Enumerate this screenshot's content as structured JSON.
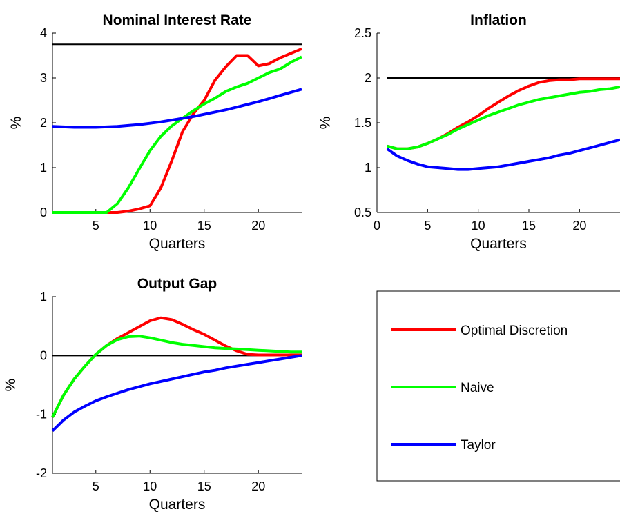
{
  "chart_data": [
    {
      "type": "line",
      "title": "Nominal Interest Rate",
      "xlabel": "Quarters",
      "ylabel": "%",
      "xlim": [
        1,
        24
      ],
      "ylim": [
        0,
        4
      ],
      "xticks": [
        "5",
        "10",
        "15",
        "20"
      ],
      "yticks": [
        "0",
        "1",
        "2",
        "3",
        "4"
      ],
      "reference_line": 3.75,
      "series": [
        {
          "name": "Optimal Discretion",
          "color": "#ff0000",
          "points": [
            [
              1,
              0
            ],
            [
              2,
              0
            ],
            [
              3,
              0
            ],
            [
              4,
              0
            ],
            [
              5,
              0
            ],
            [
              6,
              0
            ],
            [
              7,
              0
            ],
            [
              8,
              0.03
            ],
            [
              9,
              0.08
            ],
            [
              10,
              0.15
            ],
            [
              11,
              0.55
            ],
            [
              12,
              1.15
            ],
            [
              13,
              1.8
            ],
            [
              14,
              2.2
            ],
            [
              15,
              2.5
            ],
            [
              16,
              2.95
            ],
            [
              17,
              3.25
            ],
            [
              18,
              3.5
            ],
            [
              19,
              3.5
            ],
            [
              20,
              3.27
            ],
            [
              21,
              3.32
            ],
            [
              22,
              3.45
            ],
            [
              23,
              3.55
            ],
            [
              24,
              3.65
            ]
          ]
        },
        {
          "name": "Naive",
          "color": "#00ff00",
          "points": [
            [
              1,
              0
            ],
            [
              2,
              0
            ],
            [
              3,
              0
            ],
            [
              4,
              0
            ],
            [
              5,
              0
            ],
            [
              6,
              0
            ],
            [
              7,
              0.2
            ],
            [
              8,
              0.55
            ],
            [
              9,
              0.97
            ],
            [
              10,
              1.38
            ],
            [
              11,
              1.7
            ],
            [
              12,
              1.93
            ],
            [
              13,
              2.1
            ],
            [
              14,
              2.27
            ],
            [
              15,
              2.42
            ],
            [
              16,
              2.55
            ],
            [
              17,
              2.7
            ],
            [
              18,
              2.8
            ],
            [
              19,
              2.88
            ],
            [
              20,
              3.0
            ],
            [
              21,
              3.12
            ],
            [
              22,
              3.2
            ],
            [
              23,
              3.35
            ],
            [
              24,
              3.47
            ]
          ]
        },
        {
          "name": "Taylor",
          "color": "#0000ff",
          "points": [
            [
              1,
              1.92
            ],
            [
              2,
              1.91
            ],
            [
              3,
              1.9
            ],
            [
              4,
              1.9
            ],
            [
              5,
              1.9
            ],
            [
              6,
              1.91
            ],
            [
              7,
              1.92
            ],
            [
              8,
              1.94
            ],
            [
              9,
              1.96
            ],
            [
              10,
              1.99
            ],
            [
              11,
              2.02
            ],
            [
              12,
              2.06
            ],
            [
              13,
              2.1
            ],
            [
              14,
              2.14
            ],
            [
              15,
              2.19
            ],
            [
              16,
              2.24
            ],
            [
              17,
              2.29
            ],
            [
              18,
              2.35
            ],
            [
              19,
              2.41
            ],
            [
              20,
              2.47
            ],
            [
              21,
              2.54
            ],
            [
              22,
              2.61
            ],
            [
              23,
              2.68
            ],
            [
              24,
              2.75
            ]
          ]
        }
      ]
    },
    {
      "type": "line",
      "title": "Inflation",
      "xlabel": "Quarters",
      "ylabel": "%",
      "xlim": [
        0,
        24
      ],
      "ylim": [
        0.5,
        2.5
      ],
      "xticks": [
        "0",
        "5",
        "10",
        "15",
        "20"
      ],
      "yticks": [
        "0.5",
        "1",
        "1.5",
        "2",
        "2.5"
      ],
      "reference_line": 2,
      "series": [
        {
          "name": "Optimal Discretion",
          "color": "#ff0000",
          "points": [
            [
              1,
              1.24
            ],
            [
              2,
              1.21
            ],
            [
              3,
              1.21
            ],
            [
              4,
              1.23
            ],
            [
              5,
              1.27
            ],
            [
              6,
              1.32
            ],
            [
              7,
              1.38
            ],
            [
              8,
              1.45
            ],
            [
              9,
              1.51
            ],
            [
              10,
              1.58
            ],
            [
              11,
              1.66
            ],
            [
              12,
              1.73
            ],
            [
              13,
              1.8
            ],
            [
              14,
              1.86
            ],
            [
              15,
              1.91
            ],
            [
              16,
              1.95
            ],
            [
              17,
              1.97
            ],
            [
              18,
              1.98
            ],
            [
              19,
              1.98
            ],
            [
              20,
              1.99
            ],
            [
              21,
              1.99
            ],
            [
              22,
              1.99
            ],
            [
              23,
              1.99
            ],
            [
              24,
              1.99
            ]
          ]
        },
        {
          "name": "Naive",
          "color": "#00ff00",
          "points": [
            [
              1,
              1.24
            ],
            [
              2,
              1.21
            ],
            [
              3,
              1.21
            ],
            [
              4,
              1.23
            ],
            [
              5,
              1.27
            ],
            [
              6,
              1.32
            ],
            [
              7,
              1.37
            ],
            [
              8,
              1.43
            ],
            [
              9,
              1.48
            ],
            [
              10,
              1.53
            ],
            [
              11,
              1.58
            ],
            [
              12,
              1.62
            ],
            [
              13,
              1.66
            ],
            [
              14,
              1.7
            ],
            [
              15,
              1.73
            ],
            [
              16,
              1.76
            ],
            [
              17,
              1.78
            ],
            [
              18,
              1.8
            ],
            [
              19,
              1.82
            ],
            [
              20,
              1.84
            ],
            [
              21,
              1.85
            ],
            [
              22,
              1.87
            ],
            [
              23,
              1.88
            ],
            [
              24,
              1.9
            ]
          ]
        },
        {
          "name": "Taylor",
          "color": "#0000ff",
          "points": [
            [
              1,
              1.21
            ],
            [
              2,
              1.13
            ],
            [
              3,
              1.08
            ],
            [
              4,
              1.04
            ],
            [
              5,
              1.01
            ],
            [
              6,
              1.0
            ],
            [
              7,
              0.99
            ],
            [
              8,
              0.98
            ],
            [
              9,
              0.98
            ],
            [
              10,
              0.99
            ],
            [
              11,
              1.0
            ],
            [
              12,
              1.01
            ],
            [
              13,
              1.03
            ],
            [
              14,
              1.05
            ],
            [
              15,
              1.07
            ],
            [
              16,
              1.09
            ],
            [
              17,
              1.11
            ],
            [
              18,
              1.14
            ],
            [
              19,
              1.16
            ],
            [
              20,
              1.19
            ],
            [
              21,
              1.22
            ],
            [
              22,
              1.25
            ],
            [
              23,
              1.28
            ],
            [
              24,
              1.31
            ]
          ]
        }
      ]
    },
    {
      "type": "line",
      "title": "Output Gap",
      "xlabel": "Quarters",
      "ylabel": "%",
      "xlim": [
        1,
        24
      ],
      "ylim": [
        -2,
        1
      ],
      "xticks": [
        "5",
        "10",
        "15",
        "20"
      ],
      "yticks": [
        "-2",
        "-1",
        "0",
        "1"
      ],
      "reference_line": 0,
      "series": [
        {
          "name": "Optimal Discretion",
          "color": "#ff0000",
          "points": [
            [
              1,
              -1.05
            ],
            [
              2,
              -0.68
            ],
            [
              3,
              -0.4
            ],
            [
              4,
              -0.18
            ],
            [
              5,
              0.02
            ],
            [
              6,
              0.17
            ],
            [
              7,
              0.29
            ],
            [
              8,
              0.39
            ],
            [
              9,
              0.49
            ],
            [
              10,
              0.59
            ],
            [
              11,
              0.64
            ],
            [
              12,
              0.61
            ],
            [
              13,
              0.53
            ],
            [
              14,
              0.44
            ],
            [
              15,
              0.36
            ],
            [
              16,
              0.26
            ],
            [
              17,
              0.16
            ],
            [
              18,
              0.08
            ],
            [
              19,
              0.02
            ],
            [
              20,
              0.01
            ],
            [
              21,
              0.01
            ],
            [
              22,
              0.01
            ],
            [
              23,
              0.01
            ],
            [
              24,
              0.01
            ]
          ]
        },
        {
          "name": "Naive",
          "color": "#00ff00",
          "points": [
            [
              1,
              -1.05
            ],
            [
              2,
              -0.68
            ],
            [
              3,
              -0.4
            ],
            [
              4,
              -0.18
            ],
            [
              5,
              0.02
            ],
            [
              6,
              0.17
            ],
            [
              7,
              0.27
            ],
            [
              8,
              0.32
            ],
            [
              9,
              0.33
            ],
            [
              10,
              0.3
            ],
            [
              11,
              0.26
            ],
            [
              12,
              0.22
            ],
            [
              13,
              0.19
            ],
            [
              14,
              0.17
            ],
            [
              15,
              0.15
            ],
            [
              16,
              0.13
            ],
            [
              17,
              0.12
            ],
            [
              18,
              0.11
            ],
            [
              19,
              0.1
            ],
            [
              20,
              0.09
            ],
            [
              21,
              0.08
            ],
            [
              22,
              0.07
            ],
            [
              23,
              0.06
            ],
            [
              24,
              0.06
            ]
          ]
        },
        {
          "name": "Taylor",
          "color": "#0000ff",
          "points": [
            [
              1,
              -1.28
            ],
            [
              2,
              -1.1
            ],
            [
              3,
              -0.96
            ],
            [
              4,
              -0.86
            ],
            [
              5,
              -0.77
            ],
            [
              6,
              -0.7
            ],
            [
              7,
              -0.64
            ],
            [
              8,
              -0.58
            ],
            [
              9,
              -0.53
            ],
            [
              10,
              -0.48
            ],
            [
              11,
              -0.44
            ],
            [
              12,
              -0.4
            ],
            [
              13,
              -0.36
            ],
            [
              14,
              -0.32
            ],
            [
              15,
              -0.28
            ],
            [
              16,
              -0.25
            ],
            [
              17,
              -0.21
            ],
            [
              18,
              -0.18
            ],
            [
              19,
              -0.15
            ],
            [
              20,
              -0.12
            ],
            [
              21,
              -0.09
            ],
            [
              22,
              -0.06
            ],
            [
              23,
              -0.03
            ],
            [
              24,
              0.0
            ]
          ]
        }
      ]
    }
  ],
  "legend": {
    "entries": [
      {
        "label": "Optimal Discretion",
        "color": "#ff0000"
      },
      {
        "label": "Naive",
        "color": "#00ff00"
      },
      {
        "label": "Taylor",
        "color": "#0000ff"
      }
    ]
  }
}
